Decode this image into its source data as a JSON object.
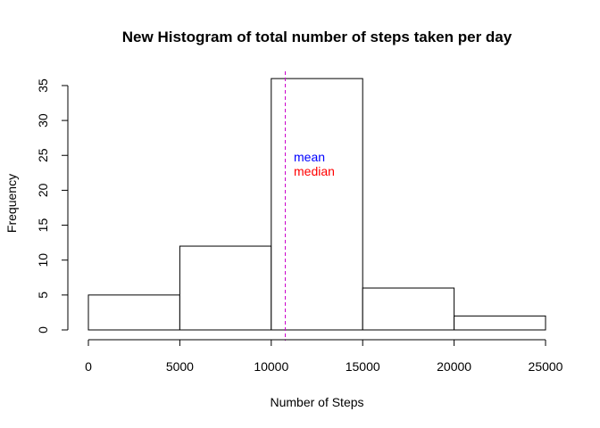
{
  "chart_data": {
    "type": "bar",
    "title": "New Histogram of total number of steps taken per day",
    "xlabel": "Number of Steps",
    "ylabel": "Frequency",
    "bins": [
      {
        "from": 0,
        "to": 5000,
        "count": 5
      },
      {
        "from": 5000,
        "to": 10000,
        "count": 12
      },
      {
        "from": 10000,
        "to": 15000,
        "count": 36
      },
      {
        "from": 15000,
        "to": 20000,
        "count": 6
      },
      {
        "from": 20000,
        "to": 25000,
        "count": 2
      }
    ],
    "xlim": [
      0,
      25000
    ],
    "ylim": [
      0,
      37
    ],
    "x_ticks": [
      0,
      5000,
      10000,
      15000,
      20000,
      25000
    ],
    "y_ticks": [
      0,
      5,
      10,
      15,
      20,
      25,
      30,
      35
    ],
    "reference_line": {
      "x": 10766,
      "color": "#cc00cc",
      "style": "dashed"
    },
    "annotations": [
      {
        "text": "mean",
        "color": "#0000ff"
      },
      {
        "text": "median",
        "color": "#ff0000"
      }
    ],
    "colors": {
      "bar_fill": "#ffffff",
      "bar_stroke": "#000000"
    }
  }
}
